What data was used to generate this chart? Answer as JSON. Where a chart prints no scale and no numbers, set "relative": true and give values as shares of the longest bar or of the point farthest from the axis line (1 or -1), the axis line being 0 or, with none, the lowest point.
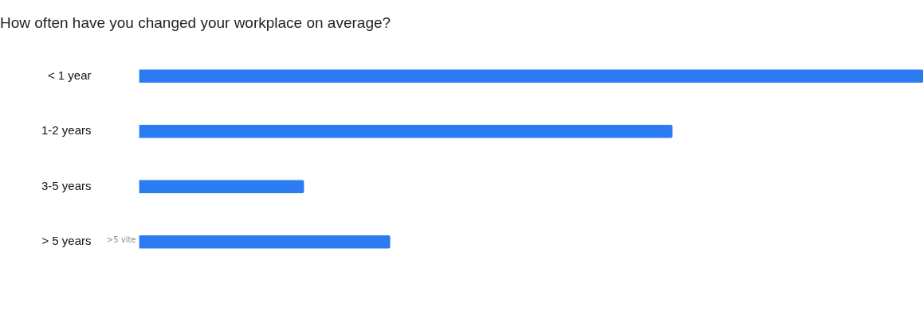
{
  "chart_data": {
    "type": "bar",
    "orientation": "horizontal",
    "relative": true,
    "title": "How often have you changed your workplace on average?",
    "categories": [
      "< 1 year",
      "1-2 years",
      "3-5 years",
      "> 5 years"
    ],
    "values": [
      1,
      0.68,
      0.21,
      0.32
    ],
    "color": "#2b7bf3",
    "annotations": [
      ">5 vite"
    ],
    "legend": false
  }
}
